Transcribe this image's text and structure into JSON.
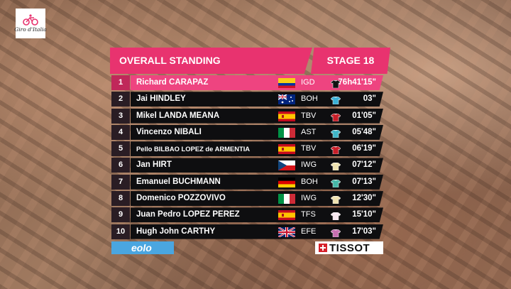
{
  "logo": {
    "text": "Giro d'Italia",
    "icon": "giro-cyclist-logo"
  },
  "header": {
    "title": "OVERALL STANDING",
    "stage": "STAGE 18"
  },
  "colors": {
    "accent": "#e8336f",
    "row_bg": "#0e0e10",
    "leader_bg": "#ee4480"
  },
  "riders": [
    {
      "pos": "1",
      "name": "Richard CARAPAZ",
      "country": "ecuador",
      "team": "IGD",
      "jersey": "pink-jersey",
      "time": "76h41'15\""
    },
    {
      "pos": "2",
      "name": "Jai HINDLEY",
      "country": "australia",
      "team": "BOH",
      "jersey": "team-jersey",
      "time": "03\""
    },
    {
      "pos": "3",
      "name": "Mikel LANDA MEANA",
      "country": "spain",
      "team": "TBV",
      "jersey": "team-jersey",
      "time": "01'05\""
    },
    {
      "pos": "4",
      "name": "Vincenzo NIBALI",
      "country": "italy",
      "team": "AST",
      "jersey": "team-jersey",
      "time": "05'48\""
    },
    {
      "pos": "5",
      "name": "Pello BILBAO LOPEZ de ARMENTIA",
      "country": "spain",
      "team": "TBV",
      "jersey": "team-jersey",
      "time": "06'19\""
    },
    {
      "pos": "6",
      "name": "Jan HIRT",
      "country": "czech",
      "team": "IWG",
      "jersey": "team-jersey",
      "time": "07'12\""
    },
    {
      "pos": "7",
      "name": "Emanuel BUCHMANN",
      "country": "germany",
      "team": "BOH",
      "jersey": "team-jersey",
      "time": "07'13\""
    },
    {
      "pos": "8",
      "name": "Domenico POZZOVIVO",
      "country": "italy",
      "team": "IWG",
      "jersey": "team-jersey",
      "time": "12'30\""
    },
    {
      "pos": "9",
      "name": "Juan Pedro LOPEZ PEREZ",
      "country": "spain",
      "team": "TFS",
      "jersey": "white-jersey",
      "time": "15'10\""
    },
    {
      "pos": "10",
      "name": "Hugh John CARTHY",
      "country": "uk",
      "team": "EFE",
      "jersey": "team-jersey",
      "time": "17'03\""
    }
  ],
  "sponsors": {
    "left": "eolo",
    "right": "TISSOT"
  }
}
